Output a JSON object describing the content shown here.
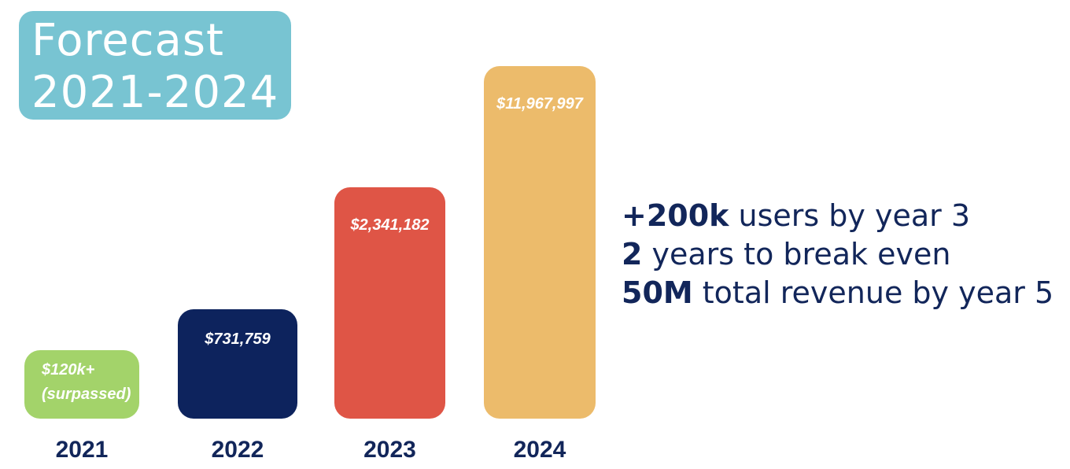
{
  "title": {
    "line1": "Forecast",
    "line2": "2021-2024"
  },
  "chart_data": {
    "type": "bar",
    "categories": [
      "2021",
      "2022",
      "2023",
      "2024"
    ],
    "values": [
      120000,
      731759,
      2341182,
      11967997
    ],
    "data_labels": [
      [
        "$120k+",
        "(surpassed)"
      ],
      [
        "$731,759"
      ],
      [
        "$2,341,182"
      ],
      [
        "$11,967,997"
      ]
    ],
    "colors": [
      "#a3d36a",
      "#0d235d",
      "#df5546",
      "#ecbb6b"
    ],
    "axis": "none",
    "grid": false,
    "legend": "none",
    "note": "Bar heights are stylized (not proportional to values)"
  },
  "stats": [
    {
      "kpi": "+200k",
      "text": " users by year 3"
    },
    {
      "kpi": "2",
      "text": " years to break even"
    },
    {
      "kpi": "50M",
      "text": " total revenue by year 5"
    }
  ]
}
